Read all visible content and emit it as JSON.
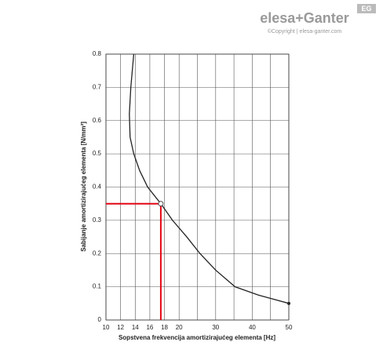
{
  "brand": {
    "name": "elesa+Ganter",
    "copyright": "©Copyright | elesa-ganter.com",
    "badge": "EG"
  },
  "chart_data": {
    "type": "line",
    "xlabel": "Sopstvena frekvencija amortizirajućeg elementa [Hz]",
    "ylabel": "Sabijanje amortizirajućeg elementa [N/mm²]",
    "xlim": [
      10,
      50
    ],
    "xticks": [
      10,
      12,
      14,
      16,
      18,
      20,
      30,
      40,
      50
    ],
    "xminor": [
      25,
      35,
      45
    ],
    "xscale": "piecewise",
    "xbreak": 20,
    "xfactor": 2,
    "ylim": [
      0,
      0.8
    ],
    "yticks": [
      0,
      0.1,
      0.2,
      0.3,
      0.4,
      0.5,
      0.6,
      0.7,
      0.8
    ],
    "grid": true,
    "series": [
      {
        "color": "#222222",
        "x": [
          13.8,
          13.4,
          13.2,
          13.3,
          13.8,
          14.6,
          15.7,
          17.5,
          19.1,
          22.1,
          25.7,
          30,
          35.3,
          41.7,
          50
        ],
        "values": [
          0.8,
          0.7,
          0.62,
          0.55,
          0.5,
          0.45,
          0.4,
          0.35,
          0.3,
          0.25,
          0.2,
          0.15,
          0.1,
          0.075,
          0.05
        ]
      }
    ],
    "highlight": {
      "x": 17.5,
      "y": 0.35,
      "color": "#e30613"
    }
  }
}
